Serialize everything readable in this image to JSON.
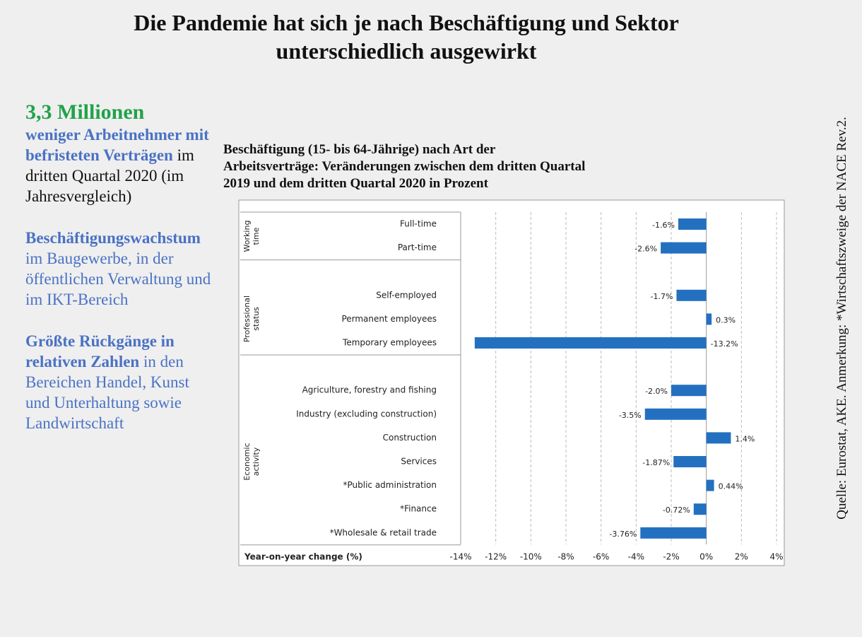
{
  "title": "Die Pandemie hat sich je nach Beschäftigung und Sektor unterschiedlich ausgewirkt",
  "sidebar": [
    {
      "heading": "3,3 Millionen",
      "bold": "weniger Arbeitnehmer mit befristeten Verträgen",
      "text": "im dritten Quartal 2020 (im Jahresvergleich)"
    },
    {
      "bold": "Beschäftigungswachstum",
      "text": "im Baugewerbe, in der öffentlichen Verwaltung und im IKT-Bereich"
    },
    {
      "bold": "Größte Rückgänge in relativen Zahlen",
      "text": "in den Bereichen Handel, Kunst und Unterhaltung sowie Landwirtschaft"
    }
  ],
  "source": "Quelle: Eurostat, AKE. Anmerkung: *Wirtschaftszweige der NACE Rev.2.",
  "chart_data": {
    "type": "hbar",
    "title": "Beschäftigung (15- bis 64-Jährige) nach Art der Arbeitsverträge: Veränderungen zwischen dem dritten Quartal 2019 und dem dritten Quartal 2020 in Prozent",
    "x_label": "Year-on-year change (%)",
    "color": "#2470c0",
    "groups": [
      {
        "name": "Working time",
        "categories": [
          "Full-time",
          "Part-time"
        ],
        "values": [
          -1.6,
          -2.6
        ],
        "value_labels": [
          "-1.6%",
          "-2.6%"
        ]
      },
      {
        "name": "Professional status",
        "categories": [
          "Self-employed",
          "Permanent employees",
          "Temporary employees"
        ],
        "values": [
          -1.7,
          0.3,
          -13.2
        ],
        "value_labels": [
          "-1.7%",
          "0.3%",
          "-13.2%"
        ]
      },
      {
        "name": "Economic activity",
        "categories": [
          "Agriculture, forestry and fishing",
          "Industry (excluding construction)",
          "Construction",
          "Services",
          "*Public administration",
          "*Finance",
          "*Wholesale & retail trade"
        ],
        "values": [
          -2.0,
          -3.5,
          1.4,
          -1.87,
          0.44,
          -0.72,
          -3.76
        ],
        "value_labels": [
          "-2.0%",
          "-3.5%",
          "1.4%",
          "-1.87%",
          "0.44%",
          "-0.72%",
          "-3.76%"
        ]
      }
    ],
    "xlim": [
      -14,
      4
    ],
    "xticks": [
      {
        "value": -14,
        "label": "-14%"
      },
      {
        "value": -12,
        "label": "-12%"
      },
      {
        "value": -10,
        "label": "-10%"
      },
      {
        "value": -8,
        "label": "-8%"
      },
      {
        "value": -6,
        "label": "-6%"
      },
      {
        "value": -4,
        "label": "-4%"
      },
      {
        "value": -2,
        "label": "-2%"
      },
      {
        "value": 0,
        "label": "0%"
      },
      {
        "value": 2,
        "label": "2%"
      },
      {
        "value": 4,
        "label": "4%"
      }
    ],
    "grid": true
  }
}
